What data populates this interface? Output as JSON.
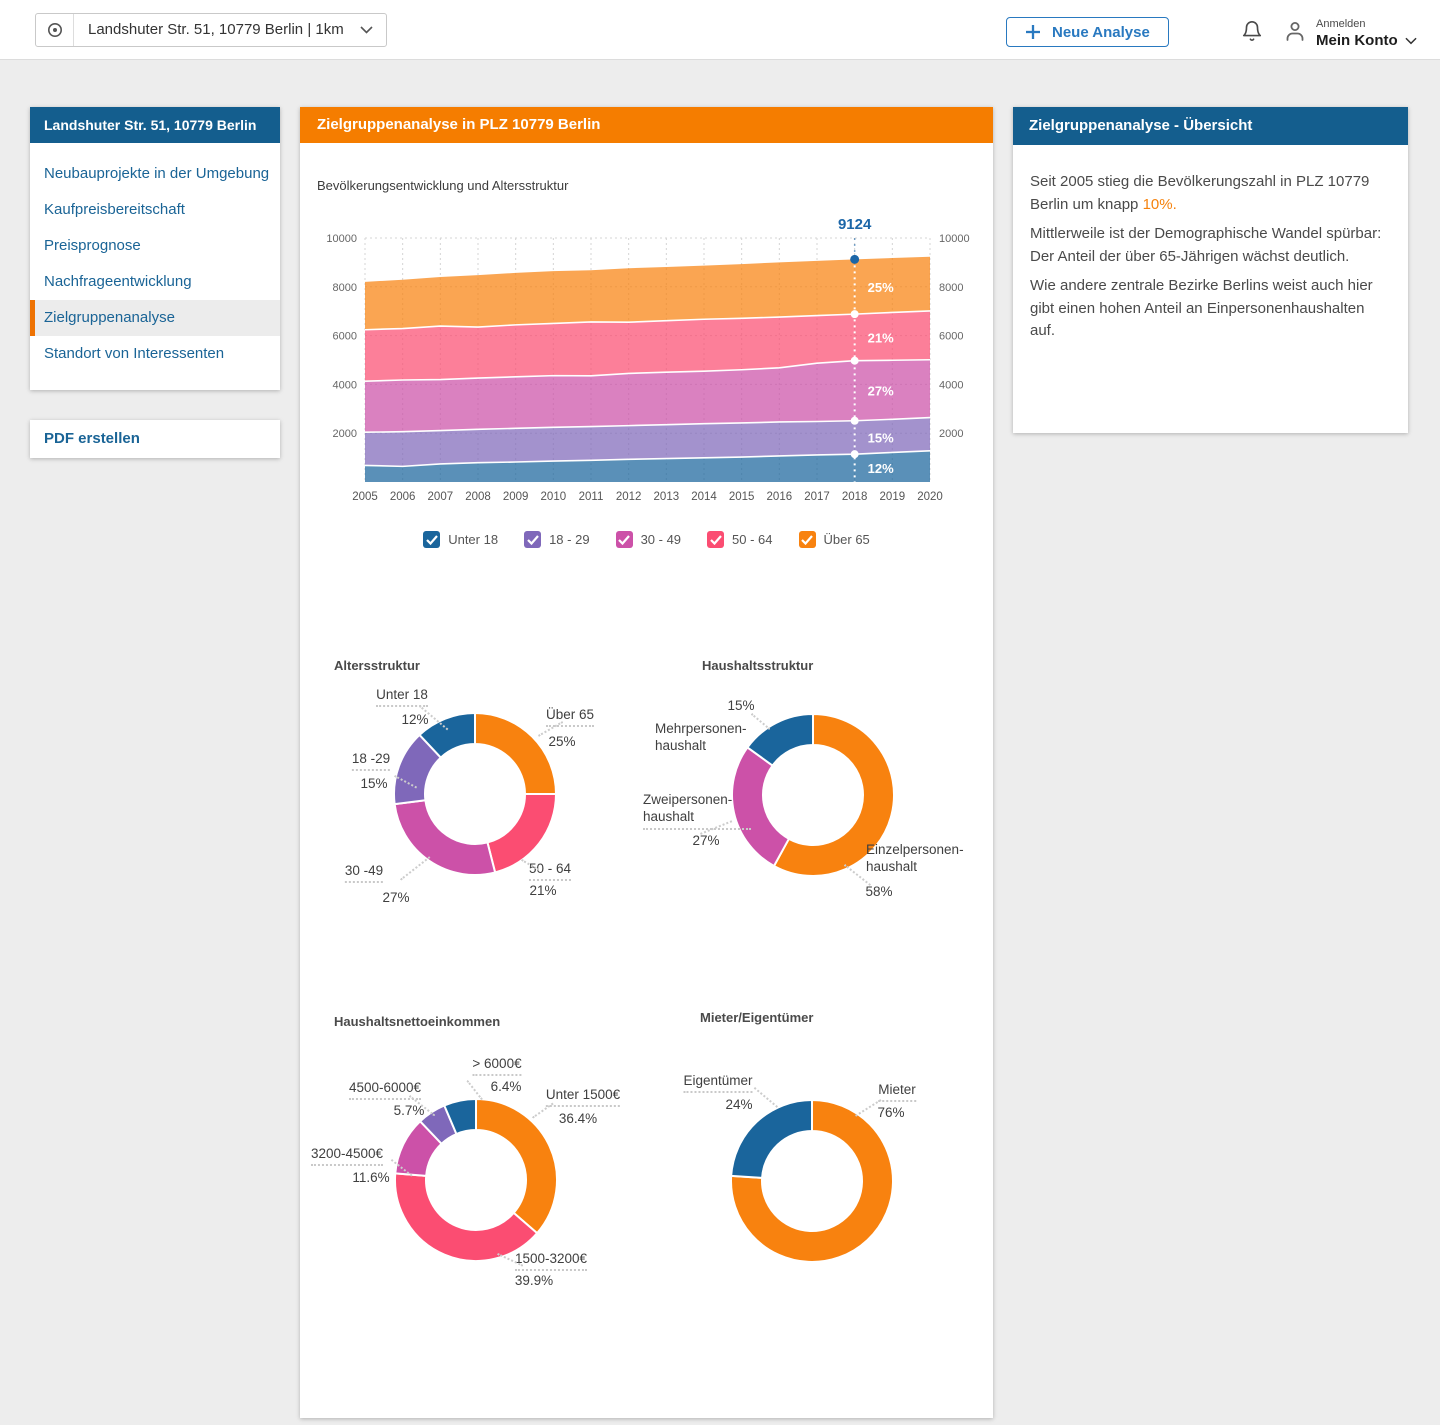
{
  "colors": {
    "header_blue": "#145E8E",
    "header_orange": "#F57D00",
    "active_orange": "#EE7203",
    "link_blue": "#1A6496",
    "button_blue": "#2979C0",
    "highlight_orange": "#F5820D",
    "annotation_blue": "#1B66A8"
  },
  "topbar": {
    "location": "Landshuter Str. 51, 10779 Berlin | 1km",
    "new_analysis": "Neue Analyse",
    "login_hint": "Anmelden",
    "account": "Mein Konto"
  },
  "sidebar": {
    "title": "Landshuter Str. 51, 10779 Berlin",
    "items": [
      "Neubauprojekte in der Umgebung",
      "Kaufpreisbereitschaft",
      "Preisprognose",
      "Nachfrageentwicklung",
      "Zielgruppenanalyse",
      "Standort von Interessenten"
    ],
    "active_item": "Zielgruppenanalyse",
    "pdf_button": "PDF erstellen"
  },
  "main_panel": {
    "header": "Zielgruppenanalyse  in PLZ 10779 Berlin"
  },
  "overview_panel": {
    "title": "Zielgruppenanalyse - Übersicht",
    "p1_before": "Seit 2005 stieg die Bevölkerungszahl in PLZ 10779 Berlin um knapp ",
    "p1_highlight": "10%.",
    "p2": "Mittlerweile ist der Demographische Wandel spürbar: Der Anteil der über 65-Jährigen wächst deutlich.",
    "p3": "Wie andere zentrale Bezirke Berlins weist auch hier gibt einen hohen Anteil an Einpersonenhaushalten auf."
  },
  "chart_data": [
    {
      "id": "population_area",
      "type": "area",
      "title": "Bevölkerungsentwicklung und Altersstruktur",
      "x": [
        2005,
        2006,
        2007,
        2008,
        2009,
        2010,
        2011,
        2012,
        2013,
        2014,
        2015,
        2016,
        2017,
        2018,
        2019,
        2020
      ],
      "ylim": [
        0,
        10000
      ],
      "yticks": [
        2000,
        4000,
        6000,
        8000,
        10000
      ],
      "grid": true,
      "legend_position": "bottom",
      "series": [
        {
          "name": "Unter 18",
          "color": "#1A659C",
          "values": [
            680,
            640,
            740,
            790,
            820,
            860,
            890,
            930,
            960,
            990,
            1020,
            1070,
            1110,
            1140,
            1210,
            1280
          ]
        },
        {
          "name": "18 - 29",
          "color": "#7F68BA",
          "values": [
            1360,
            1420,
            1370,
            1370,
            1380,
            1380,
            1380,
            1380,
            1390,
            1400,
            1400,
            1390,
            1370,
            1370,
            1360,
            1360
          ]
        },
        {
          "name": "30 - 49",
          "color": "#CC51A8",
          "values": [
            2090,
            2120,
            2090,
            2100,
            2110,
            2120,
            2080,
            2140,
            2150,
            2150,
            2180,
            2220,
            2390,
            2460,
            2420,
            2370
          ]
        },
        {
          "name": "50 - 64",
          "color": "#FB4D72",
          "values": [
            2110,
            2110,
            2190,
            2090,
            2130,
            2140,
            2210,
            2100,
            2110,
            2130,
            2110,
            2080,
            1950,
            1910,
            1960,
            2000
          ]
        },
        {
          "name": "Über 65",
          "color": "#F8820F",
          "values": [
            1960,
            2000,
            2010,
            2130,
            2130,
            2140,
            2120,
            2210,
            2200,
            2200,
            2220,
            2240,
            2240,
            2244,
            2230,
            2220
          ]
        }
      ],
      "annotation": {
        "x": 2018,
        "total": 9124,
        "total_label": "9124",
        "band_labels": [
          "12%",
          "15%",
          "27%",
          "21%",
          "25%"
        ]
      }
    },
    {
      "id": "age_donut",
      "type": "pie",
      "title": "Altersstruktur",
      "slices": [
        {
          "label": "Über 65",
          "value": 25,
          "pct": "25%",
          "color": "#F8820F"
        },
        {
          "label": "50 - 64",
          "value": 21,
          "pct": "21%",
          "color": "#FB4D72"
        },
        {
          "label": "30 -49",
          "value": 27,
          "pct": "27%",
          "color": "#CC51A8"
        },
        {
          "label": "18 -29",
          "value": 15,
          "pct": "15%",
          "color": "#7F68BA"
        },
        {
          "label": "Unter 18",
          "value": 12,
          "pct": "12%",
          "color": "#1A659C"
        }
      ]
    },
    {
      "id": "household_donut",
      "type": "pie",
      "title": "Haushaltsstruktur",
      "slices": [
        {
          "label": "Einzelpersonen-haushalt",
          "value": 58,
          "pct": "58%",
          "color": "#F8820F"
        },
        {
          "label": "Zweipersonen-haushalt",
          "value": 27,
          "pct": "27%",
          "color": "#CC51A8"
        },
        {
          "label": "Mehrpersonen-haushalt",
          "value": 15,
          "pct": "15%",
          "color": "#1A659C"
        }
      ]
    },
    {
      "id": "income_donut",
      "type": "pie",
      "title": "Haushaltsnettoeinkommen",
      "slices": [
        {
          "label": "Unter 1500€",
          "value": 36.4,
          "pct": "36.4%",
          "color": "#F8820F"
        },
        {
          "label": "1500-3200€",
          "value": 39.9,
          "pct": "39.9%",
          "color": "#FB4D72"
        },
        {
          "label": "3200-4500€",
          "value": 11.6,
          "pct": "11.6%",
          "color": "#CC51A8"
        },
        {
          "label": "4500-6000€",
          "value": 5.7,
          "pct": "5.7%",
          "color": "#7F68BA"
        },
        {
          "label": "> 6000€",
          "value": 6.4,
          "pct": "6.4%",
          "color": "#1A659C"
        }
      ]
    },
    {
      "id": "tenure_donut",
      "type": "pie",
      "title": "Mieter/Eigentümer",
      "slices": [
        {
          "label": "Mieter",
          "value": 76,
          "pct": "76%",
          "color": "#F8820F"
        },
        {
          "label": "Eigentümer",
          "value": 24,
          "pct": "24%",
          "color": "#1A659C"
        }
      ]
    }
  ]
}
